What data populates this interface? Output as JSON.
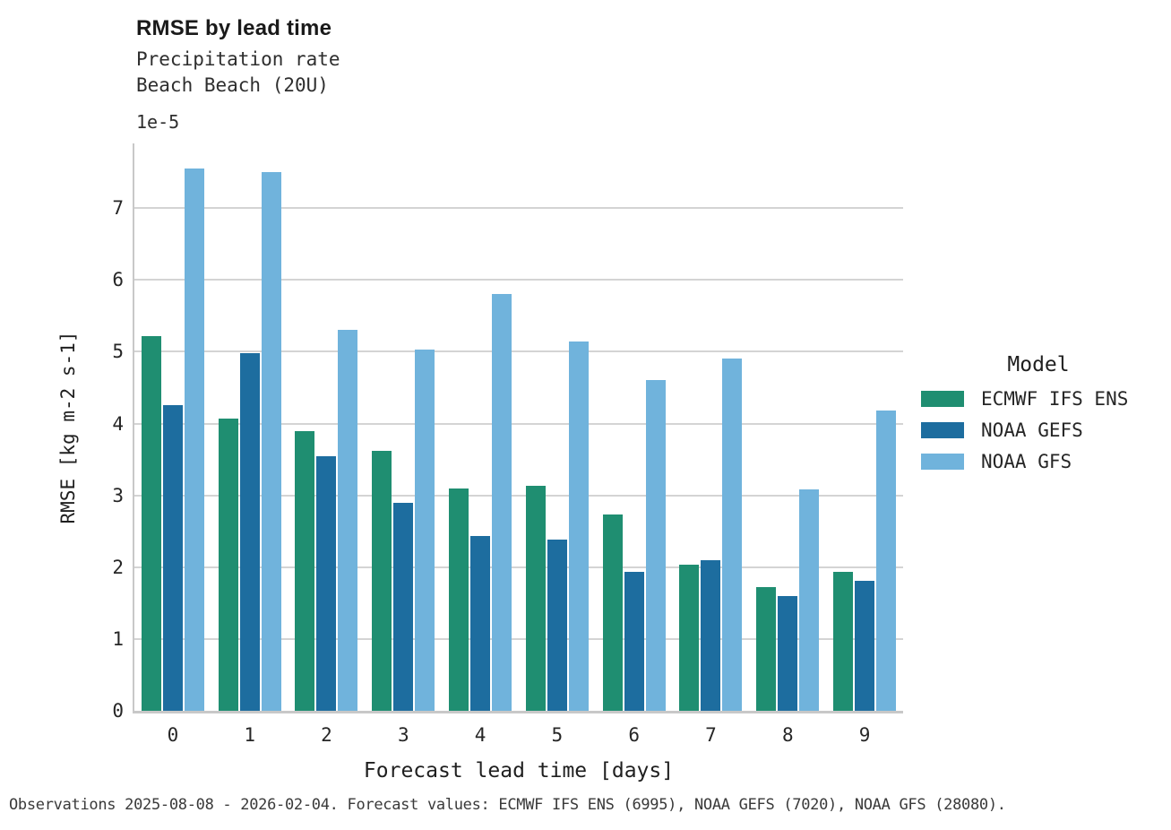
{
  "header": {
    "title": "RMSE by lead time",
    "subtitle_line1": "Precipitation rate",
    "subtitle_line2": "Beach Beach (20U)"
  },
  "footer": {
    "text": "Observations 2025-08-08 - 2026-02-04. Forecast values: ECMWF IFS ENS (6995), NOAA GEFS (7020), NOAA GFS (28080)."
  },
  "chart_data": {
    "type": "bar",
    "title": "RMSE by lead time",
    "subtitle": [
      "Precipitation rate",
      "Beach Beach (20U)"
    ],
    "xlabel": "Forecast lead time [days]",
    "ylabel": "RMSE [kg m-2 s-1]",
    "y_offset_text": "1e-5",
    "value_scale_note": "all values are in units of 1e-5 kg m-2 s-1",
    "categories": [
      "0",
      "1",
      "2",
      "3",
      "4",
      "5",
      "6",
      "7",
      "8",
      "9"
    ],
    "series": [
      {
        "name": "ECMWF IFS ENS",
        "color": "#1f8e71",
        "values": [
          5.22,
          4.07,
          3.9,
          3.62,
          3.1,
          3.13,
          2.73,
          2.03,
          1.72,
          1.93
        ]
      },
      {
        "name": "NOAA GEFS",
        "color": "#1d6d9f",
        "values": [
          4.25,
          4.98,
          3.55,
          2.9,
          2.43,
          2.38,
          1.93,
          2.1,
          1.6,
          1.81
        ]
      },
      {
        "name": "NOAA GFS",
        "color": "#70b3dc",
        "values": [
          7.55,
          7.5,
          5.3,
          5.03,
          5.8,
          5.14,
          4.6,
          4.9,
          3.08,
          4.18
        ]
      }
    ],
    "ylim": [
      0,
      7.9
    ],
    "yticks": [
      "0",
      "1",
      "2",
      "3",
      "4",
      "5",
      "6",
      "7"
    ],
    "grid": true,
    "gridline_color": "#d4d4d4",
    "spine_color": "#c8c8c8",
    "legend_title": "Model",
    "legend_position": "right"
  }
}
